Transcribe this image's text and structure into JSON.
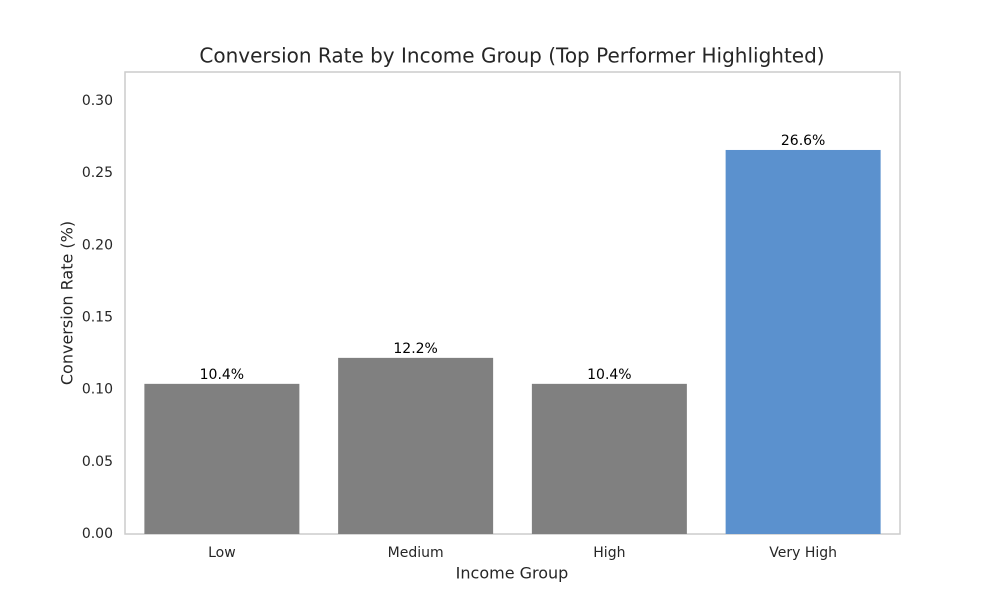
{
  "chart_data": {
    "type": "bar",
    "title": "Conversion Rate by Income Group (Top Performer Highlighted)",
    "xlabel": "Income Group",
    "ylabel": "Conversion Rate (%)",
    "categories": [
      "Low",
      "Medium",
      "High",
      "Very High"
    ],
    "values": [
      0.104,
      0.122,
      0.104,
      0.266
    ],
    "value_labels": [
      "10.4%",
      "12.2%",
      "10.4%",
      "26.6%"
    ],
    "colors": [
      "#808080",
      "#808080",
      "#808080",
      "#5b91ce"
    ],
    "ylim": [
      0,
      0.32
    ],
    "yticks": [
      {
        "value": 0,
        "label": "0.00"
      },
      0.05,
      {
        "value": 0.1,
        "label": "0.10"
      },
      0.15,
      {
        "value": 0.2,
        "label": "0.20"
      },
      0.25,
      {
        "value": 0.3,
        "label": "0.30"
      }
    ],
    "grid": false
  }
}
